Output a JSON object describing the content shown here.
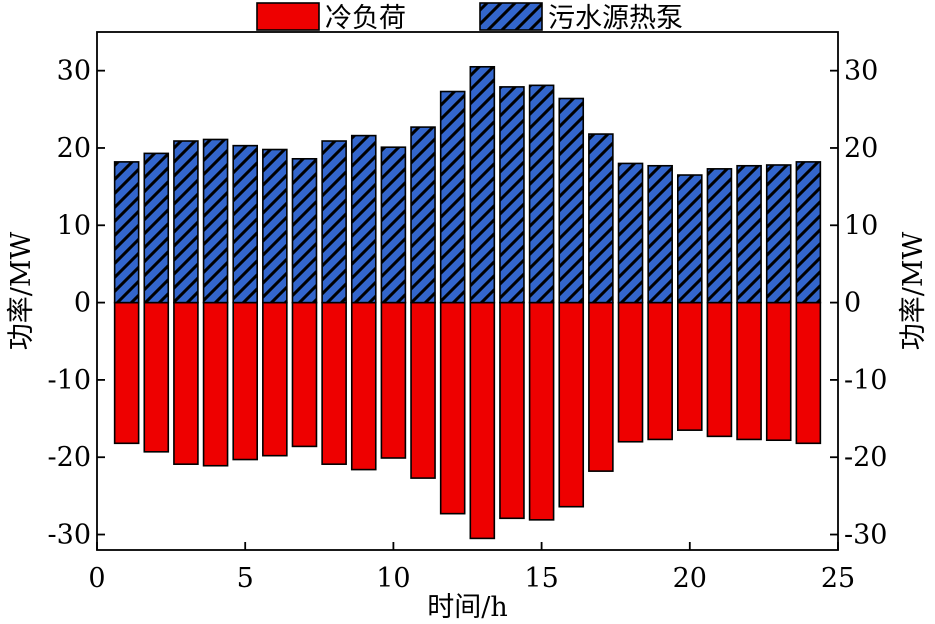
{
  "chart_data": {
    "type": "bar",
    "xlabel": "时间/h",
    "ylabel": "功率/MW",
    "ylabel_right": "功率/MW",
    "xlim": [
      0,
      25
    ],
    "ylim": [
      -32,
      35
    ],
    "xticks": [
      "0",
      "5",
      "10",
      "15",
      "20",
      "25"
    ],
    "yticks": [
      "-30",
      "-20",
      "-10",
      "0",
      "10",
      "20",
      "30"
    ],
    "x": [
      1,
      2,
      3,
      4,
      5,
      6,
      7,
      8,
      9,
      10,
      11,
      12,
      13,
      14,
      15,
      16,
      17,
      18,
      19,
      20,
      21,
      22,
      23,
      24
    ],
    "grid": false,
    "legend_position": "top",
    "series": [
      {
        "name": "冷负荷",
        "color": "#ee0000",
        "pattern": "solid",
        "values": [
          -18.2,
          -19.3,
          -20.9,
          -21.1,
          -20.3,
          -19.8,
          -18.6,
          -20.9,
          -21.6,
          -20.1,
          -22.7,
          -27.3,
          -30.5,
          -27.9,
          -28.1,
          -26.4,
          -21.8,
          -18.0,
          -17.7,
          -16.5,
          -17.3,
          -17.7,
          -17.8,
          -18.2
        ]
      },
      {
        "name": "污水源热泵",
        "color": "#3366cc",
        "pattern": "hatch",
        "values": [
          18.2,
          19.3,
          20.9,
          21.1,
          20.3,
          19.8,
          18.6,
          20.9,
          21.6,
          20.1,
          22.7,
          27.3,
          30.5,
          27.9,
          28.1,
          26.4,
          21.8,
          18.0,
          17.7,
          16.5,
          17.3,
          17.7,
          17.8,
          18.2
        ]
      }
    ]
  }
}
